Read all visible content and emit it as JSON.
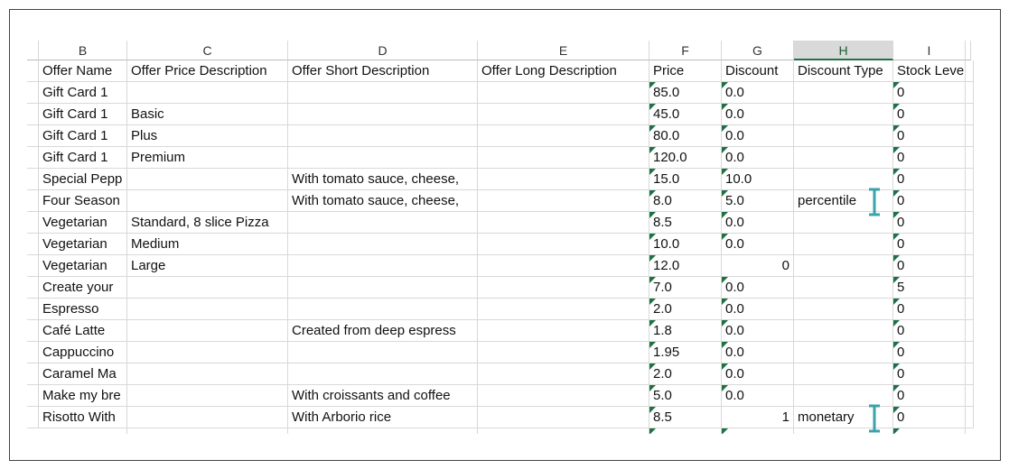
{
  "columns": [
    "B",
    "C",
    "D",
    "E",
    "F",
    "G",
    "H",
    "I"
  ],
  "selected_column": 6,
  "table": {
    "header": [
      "Offer Name",
      "Offer Price Description",
      "Offer Short Description",
      "Offer Long Description",
      "Price",
      "Discount",
      "Discount Type",
      "Stock Leve"
    ],
    "stored_as_number": [
      [
        8,
        5
      ],
      [
        15,
        5
      ]
    ],
    "rows": [
      [
        "Gift Card 1",
        null,
        null,
        null,
        "85.0",
        "0.0",
        null,
        "0"
      ],
      [
        "Gift Card 1",
        "Basic",
        null,
        null,
        "45.0",
        "0.0",
        null,
        "0"
      ],
      [
        "Gift Card 1",
        "Plus",
        null,
        null,
        "80.0",
        "0.0",
        null,
        "0"
      ],
      [
        "Gift Card 1",
        "Premium",
        null,
        null,
        "120.0",
        "0.0",
        null,
        "0"
      ],
      [
        "Special Pepp",
        null,
        "With tomato sauce, cheese,",
        null,
        "15.0",
        "10.0",
        null,
        "0"
      ],
      [
        "Four Season",
        null,
        "With tomato sauce, cheese,",
        null,
        "8.0",
        "5.0",
        "percentile",
        "0"
      ],
      [
        "Vegetarian",
        "Standard, 8 slice Pizza",
        null,
        null,
        "8.5",
        "0.0",
        null,
        "0"
      ],
      [
        "Vegetarian",
        "Medium",
        null,
        null,
        "10.0",
        "0.0",
        null,
        "0"
      ],
      [
        "Vegetarian",
        "Large",
        null,
        null,
        "12.0",
        "0",
        null,
        "0"
      ],
      [
        "Create your",
        null,
        null,
        null,
        "7.0",
        "0.0",
        null,
        "5"
      ],
      [
        "Espresso",
        null,
        null,
        null,
        "2.0",
        "0.0",
        null,
        "0"
      ],
      [
        "Café Latte",
        null,
        "Created from deep espress",
        null,
        "1.8",
        "0.0",
        null,
        "0"
      ],
      [
        "Cappuccino",
        null,
        null,
        null,
        "1.95",
        "0.0",
        null,
        "0"
      ],
      [
        "Caramel Ma",
        null,
        null,
        null,
        "2.0",
        "0.0",
        null,
        "0"
      ],
      [
        "Make my bre",
        null,
        "With croissants and coffee",
        null,
        "5.0",
        "0.0",
        null,
        "0"
      ],
      [
        "Risotto With",
        null,
        "With Arborio rice",
        null,
        "8.5",
        "1",
        "monetary",
        "0"
      ]
    ]
  }
}
